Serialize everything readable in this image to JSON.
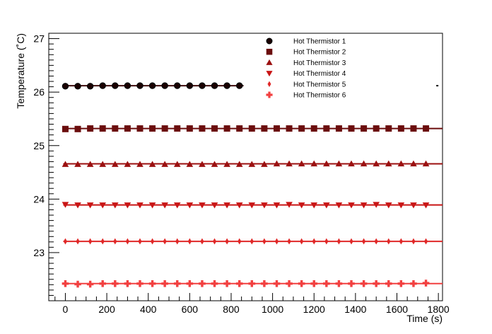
{
  "chart_data": {
    "type": "scatter",
    "title": "",
    "xlabel": "Time (s)",
    "ylabel": "Temperature (˚C)",
    "xlim": [
      -80,
      1820
    ],
    "ylim": [
      22.1,
      27.1
    ],
    "x_ticks": [
      0,
      200,
      400,
      600,
      800,
      1000,
      1200,
      1400,
      1600,
      1800
    ],
    "y_ticks": [
      23,
      24,
      25,
      26,
      27
    ],
    "x_tick_labels": [
      "0",
      "200",
      "400",
      "600",
      "800",
      "1000",
      "1200",
      "1400",
      "1600",
      "1800"
    ],
    "y_tick_labels": [
      "23",
      "24",
      "25",
      "26",
      "27"
    ],
    "grid": false,
    "legend_position": "top-right",
    "series": [
      {
        "name": "Hot Thermistor 1",
        "marker": "circle",
        "color": "#3d0b0b",
        "x": [
          0,
          60,
          120,
          180,
          240,
          300,
          360,
          420,
          480,
          540,
          600,
          660,
          720,
          780,
          840
        ],
        "values": [
          26.11,
          26.11,
          26.11,
          26.12,
          26.12,
          26.12,
          26.12,
          26.12,
          26.12,
          26.12,
          26.12,
          26.12,
          26.12,
          26.12,
          26.12
        ],
        "fit": {
          "x_start": -10,
          "x_end": 860,
          "y": 26.12,
          "stray_marker_x": 1800
        }
      },
      {
        "name": "Hot Thermistor 2",
        "marker": "square",
        "color": "#6b0d0d",
        "x": [
          0,
          60,
          120,
          180,
          240,
          300,
          360,
          420,
          480,
          540,
          600,
          660,
          720,
          780,
          840,
          900,
          960,
          1020,
          1080,
          1140,
          1200,
          1260,
          1320,
          1380,
          1440,
          1500,
          1560,
          1620,
          1680,
          1740
        ],
        "values": [
          25.31,
          25.31,
          25.32,
          25.32,
          25.32,
          25.32,
          25.32,
          25.32,
          25.32,
          25.32,
          25.32,
          25.32,
          25.32,
          25.32,
          25.32,
          25.32,
          25.32,
          25.32,
          25.32,
          25.32,
          25.32,
          25.32,
          25.32,
          25.32,
          25.32,
          25.32,
          25.32,
          25.32,
          25.32,
          25.32
        ],
        "fit": {
          "x_start": -10,
          "x_end": 1820,
          "y": 25.32
        }
      },
      {
        "name": "Hot Thermistor 3",
        "marker": "triangle-up",
        "color": "#9b1010",
        "x": [
          0,
          60,
          120,
          180,
          240,
          300,
          360,
          420,
          480,
          540,
          600,
          660,
          720,
          780,
          840,
          900,
          960,
          1020,
          1080,
          1140,
          1200,
          1260,
          1320,
          1380,
          1440,
          1500,
          1560,
          1620,
          1680,
          1740
        ],
        "values": [
          24.65,
          24.65,
          24.65,
          24.65,
          24.65,
          24.65,
          24.65,
          24.65,
          24.65,
          24.65,
          24.65,
          24.65,
          24.65,
          24.65,
          24.65,
          24.65,
          24.65,
          24.66,
          24.66,
          24.66,
          24.66,
          24.66,
          24.66,
          24.66,
          24.66,
          24.66,
          24.66,
          24.66,
          24.66,
          24.66
        ],
        "fit": {
          "x_start": -10,
          "x_end": 1820,
          "y": 24.66
        }
      },
      {
        "name": "Hot Thermistor 4",
        "marker": "triangle-down",
        "color": "#c91515",
        "x": [
          0,
          60,
          120,
          180,
          240,
          300,
          360,
          420,
          480,
          540,
          600,
          660,
          720,
          780,
          840,
          900,
          960,
          1020,
          1080,
          1140,
          1200,
          1260,
          1320,
          1380,
          1440,
          1500,
          1560,
          1620,
          1680,
          1740
        ],
        "values": [
          23.9,
          23.89,
          23.89,
          23.89,
          23.89,
          23.89,
          23.89,
          23.89,
          23.89,
          23.89,
          23.89,
          23.89,
          23.89,
          23.89,
          23.89,
          23.89,
          23.89,
          23.89,
          23.9,
          23.89,
          23.89,
          23.89,
          23.89,
          23.89,
          23.89,
          23.9,
          23.89,
          23.89,
          23.89,
          23.89
        ],
        "fit": {
          "x_start": -10,
          "x_end": 1820,
          "y": 23.89
        }
      },
      {
        "name": "Hot Thermistor 5",
        "marker": "diamond",
        "color": "#e02828",
        "x": [
          0,
          60,
          120,
          180,
          240,
          300,
          360,
          420,
          480,
          540,
          600,
          660,
          720,
          780,
          840,
          900,
          960,
          1020,
          1080,
          1140,
          1200,
          1260,
          1320,
          1380,
          1440,
          1500,
          1560,
          1620,
          1680,
          1740
        ],
        "values": [
          23.21,
          23.21,
          23.21,
          23.21,
          23.21,
          23.21,
          23.21,
          23.21,
          23.21,
          23.21,
          23.21,
          23.21,
          23.21,
          23.21,
          23.21,
          23.21,
          23.21,
          23.21,
          23.21,
          23.21,
          23.21,
          23.21,
          23.21,
          23.21,
          23.21,
          23.21,
          23.21,
          23.21,
          23.21,
          23.21
        ],
        "fit": {
          "x_start": -10,
          "x_end": 1820,
          "y": 23.21
        }
      },
      {
        "name": "Hot Thermistor 6",
        "marker": "cross",
        "color": "#f24040",
        "x": [
          0,
          60,
          120,
          180,
          240,
          300,
          360,
          420,
          480,
          540,
          600,
          660,
          720,
          780,
          840,
          900,
          960,
          1020,
          1080,
          1140,
          1200,
          1260,
          1320,
          1380,
          1440,
          1500,
          1560,
          1620,
          1680,
          1740
        ],
        "values": [
          22.42,
          22.41,
          22.41,
          22.42,
          22.42,
          22.42,
          22.42,
          22.42,
          22.42,
          22.42,
          22.42,
          22.42,
          22.42,
          22.42,
          22.42,
          22.42,
          22.42,
          22.42,
          22.42,
          22.42,
          22.42,
          22.42,
          22.42,
          22.42,
          22.42,
          22.42,
          22.42,
          22.42,
          22.42,
          22.43
        ],
        "fit": {
          "x_start": -10,
          "x_end": 1820,
          "y": 22.42
        }
      }
    ]
  }
}
